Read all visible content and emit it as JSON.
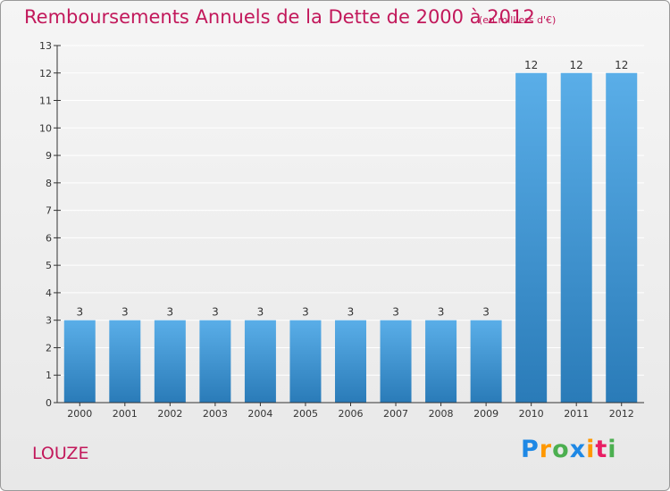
{
  "title": "Remboursements Annuels de la Dette de 2000 à 2012",
  "unit_note": "(en milliers d'€)",
  "commune": "LOUZE",
  "logo": {
    "letters": [
      "P",
      "r",
      "o",
      "x",
      "i",
      "t",
      "i"
    ],
    "colors": [
      "#1e88e5",
      "#ff9800",
      "#4caf50",
      "#1e88e5",
      "#ff9800",
      "#e91e63",
      "#4caf50"
    ]
  },
  "colors": {
    "bar_light": "#5aaee8",
    "bar_dark": "#2a7bb8",
    "title": "#c2185b",
    "axis": "#333333",
    "grid": "#ffffff"
  },
  "chart_data": {
    "type": "bar",
    "categories": [
      "2000",
      "2001",
      "2002",
      "2003",
      "2004",
      "2005",
      "2006",
      "2007",
      "2008",
      "2009",
      "2010",
      "2011",
      "2012"
    ],
    "values": [
      3,
      3,
      3,
      3,
      3,
      3,
      3,
      3,
      3,
      3,
      12,
      12,
      12
    ],
    "yticks": [
      0,
      1,
      2,
      3,
      4,
      5,
      6,
      7,
      8,
      9,
      10,
      11,
      12,
      13
    ],
    "ylim": [
      0,
      13
    ],
    "grid": true
  }
}
